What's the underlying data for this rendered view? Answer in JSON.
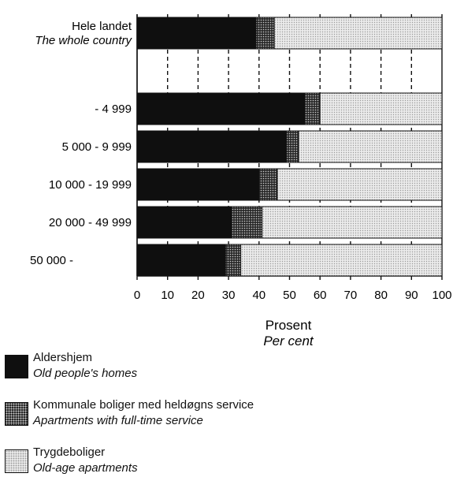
{
  "chart_data": {
    "type": "bar",
    "orientation": "horizontal",
    "stacked": true,
    "categories": [
      {
        "label": "Hele landet",
        "sublabel": "The whole country"
      },
      {
        "label": "",
        "sublabel": ""
      },
      {
        "label": "- 4 999",
        "sublabel": ""
      },
      {
        "label": "5 000 - 9 999",
        "sublabel": ""
      },
      {
        "label": "10 000 - 19 999",
        "sublabel": ""
      },
      {
        "label": "20 000 - 49 999",
        "sublabel": ""
      },
      {
        "label": "50 000 -",
        "sublabel": ""
      }
    ],
    "series": [
      {
        "name": "Aldershjem",
        "name_en": "Old people's homes",
        "color": "#0f0f0f",
        "pattern": "solid",
        "values": [
          39,
          null,
          55,
          49,
          40,
          31,
          29
        ]
      },
      {
        "name": "Kommunale boliger med heldøgns service",
        "name_en": "Apartments with full-time service",
        "color": "#2a2a2a",
        "pattern": "dark-dots",
        "values": [
          6,
          null,
          5,
          4,
          6,
          10,
          5
        ]
      },
      {
        "name": "Trygdeboliger",
        "name_en": "Old-age apartments",
        "color": "#e8e8e8",
        "pattern": "light-dots",
        "values": [
          55,
          null,
          40,
          47,
          54,
          59,
          66
        ]
      }
    ],
    "xlim": [
      0,
      100
    ],
    "xticks": [
      "0",
      "10",
      "20",
      "30",
      "40",
      "50",
      "60",
      "70",
      "80",
      "90",
      "100"
    ],
    "xlabel": "Prosent",
    "xlabel_en": "Per cent",
    "grid": "dashed vertical",
    "legend_placement": "bottom-left"
  }
}
